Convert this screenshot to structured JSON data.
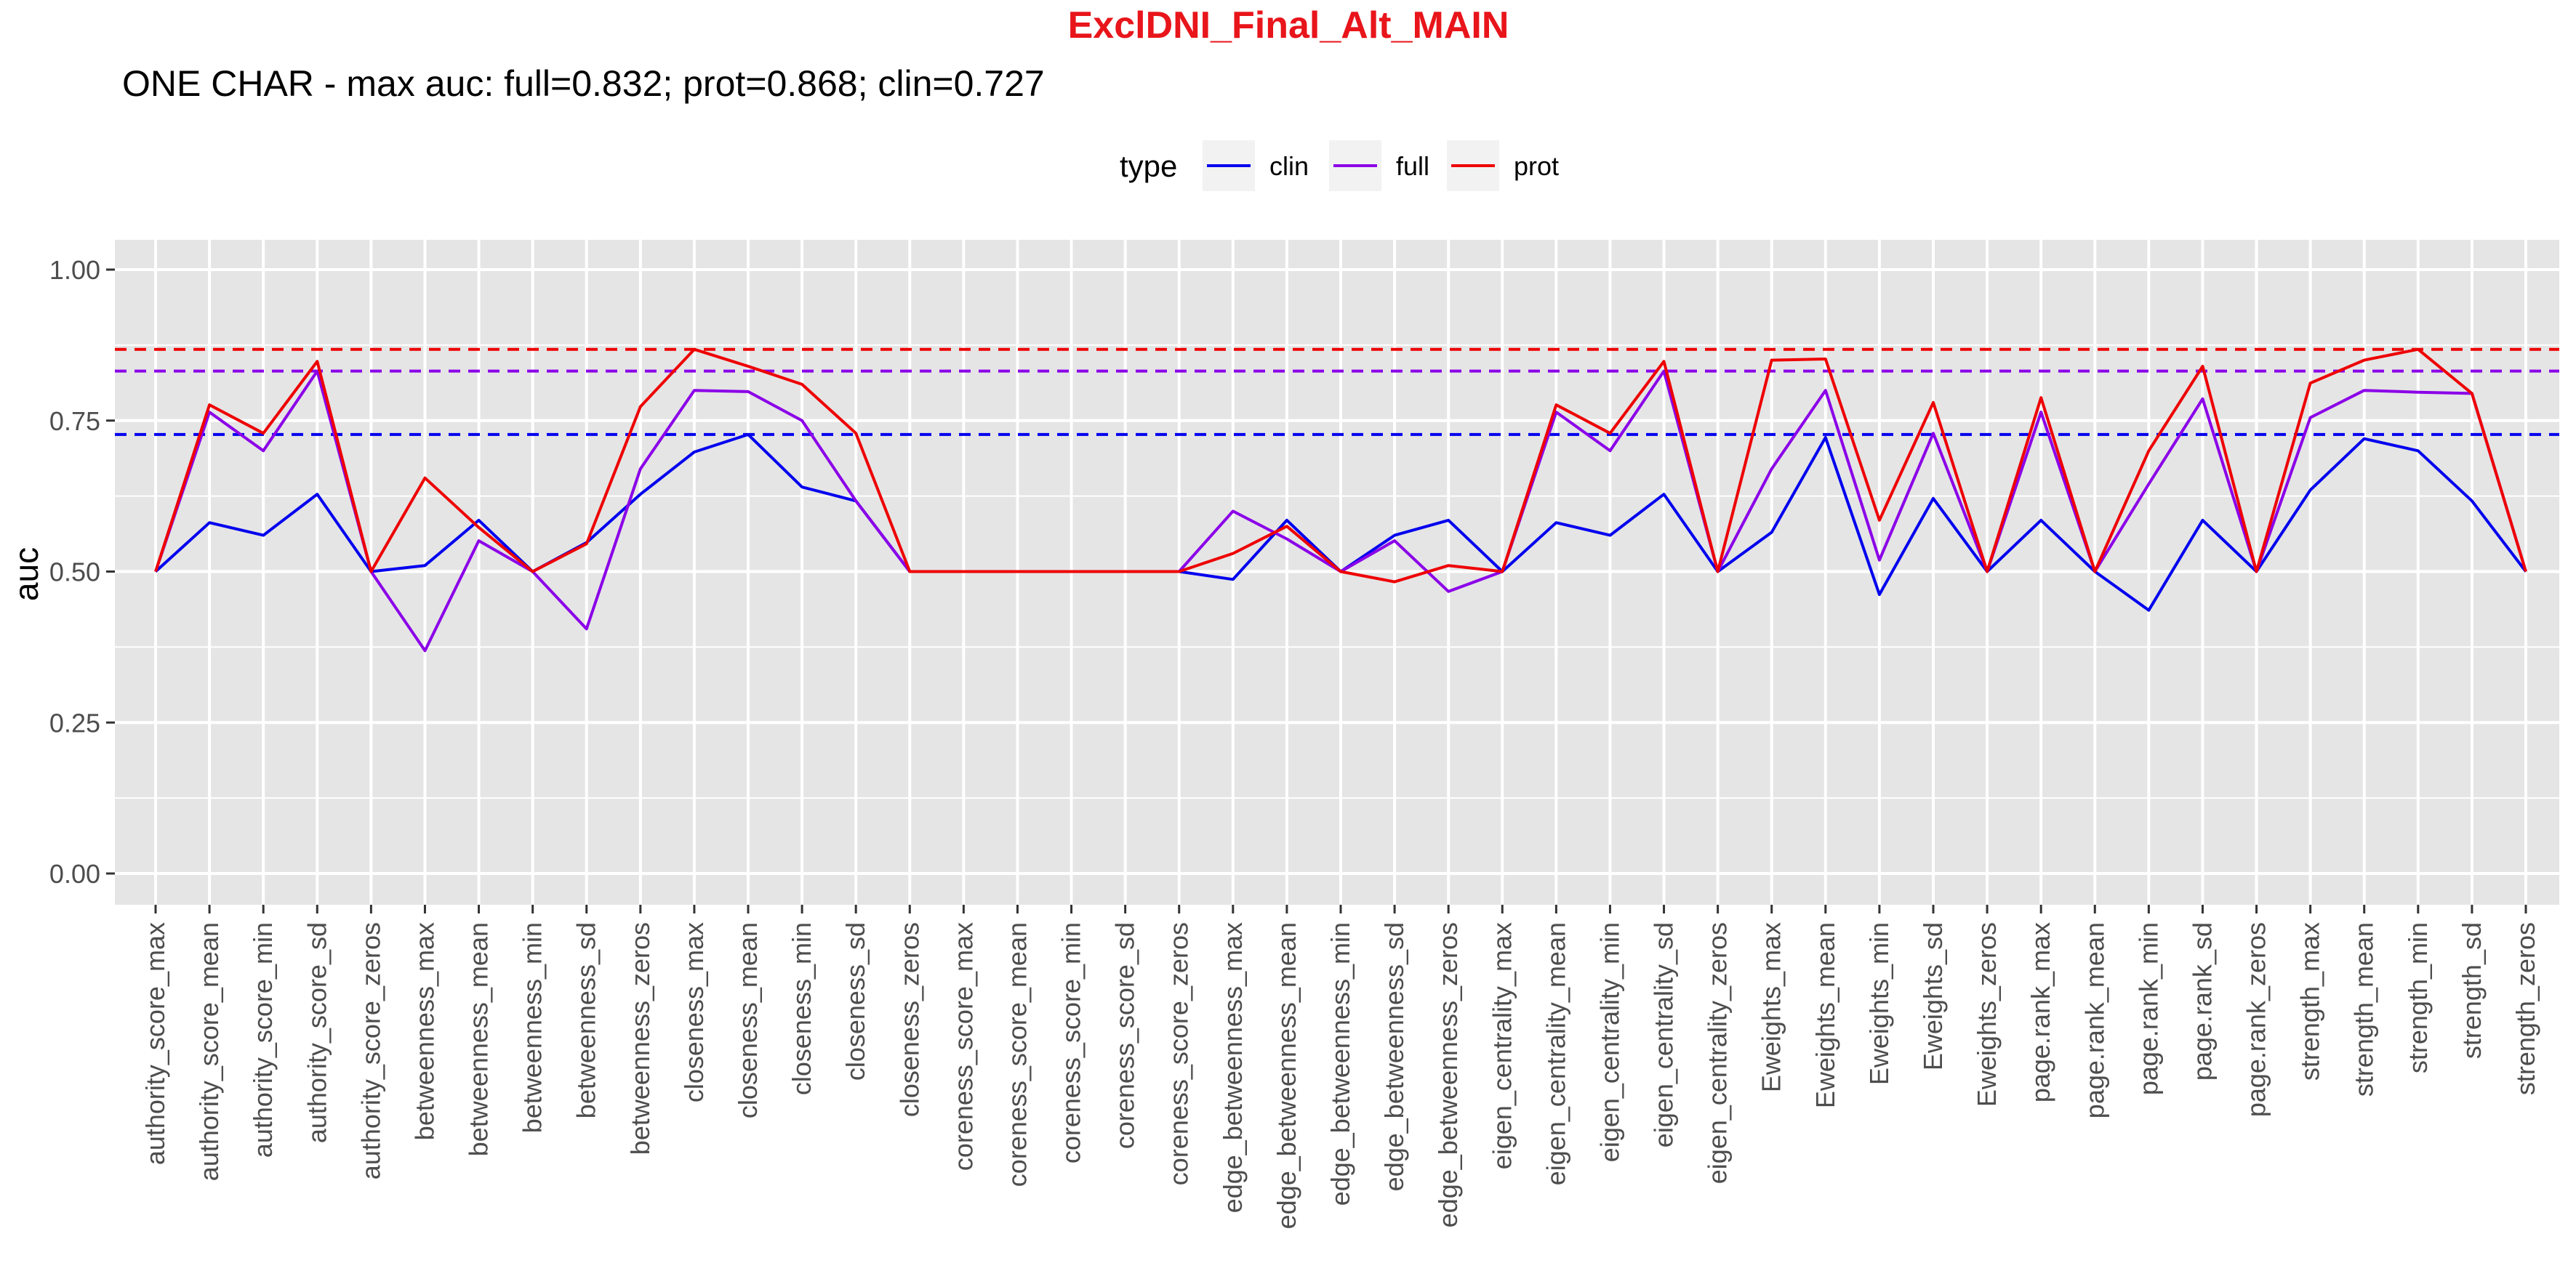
{
  "chart_data": {
    "type": "line",
    "title": "ExclDNI_Final_Alt_MAIN",
    "subtitle": "ONE CHAR - max auc: full=0.832; prot=0.868; clin=0.727",
    "xlabel": "",
    "ylabel": "auc",
    "ylim": [
      0.0,
      1.0
    ],
    "yticks": [
      0.0,
      0.25,
      0.5,
      0.75,
      1.0
    ],
    "ytick_labels": [
      "0.00",
      "0.25",
      "0.50",
      "0.75",
      "1.00"
    ],
    "grid": true,
    "legend": {
      "title": "type",
      "placement": "top",
      "entries": [
        "clin",
        "full",
        "prot"
      ]
    },
    "colors": {
      "title": "#e8151b",
      "clin": "#0000ee",
      "full": "#8b00e8",
      "prot": "#ee0000",
      "panel": "#e5e5e5",
      "grid": "#ffffff"
    },
    "categories": [
      "authority_score_max",
      "authority_score_mean",
      "authority_score_min",
      "authority_score_sd",
      "authority_score_zeros",
      "betweenness_max",
      "betweenness_mean",
      "betweenness_min",
      "betweenness_sd",
      "betweenness_zeros",
      "closeness_max",
      "closeness_mean",
      "closeness_min",
      "closeness_sd",
      "closeness_zeros",
      "coreness_score_max",
      "coreness_score_mean",
      "coreness_score_min",
      "coreness_score_sd",
      "coreness_score_zeros",
      "edge_betweenness_max",
      "edge_betweenness_mean",
      "edge_betweenness_min",
      "edge_betweenness_sd",
      "edge_betweenness_zeros",
      "eigen_centrality_max",
      "eigen_centrality_mean",
      "eigen_centrality_min",
      "eigen_centrality_sd",
      "eigen_centrality_zeros",
      "Eweights_max",
      "Eweights_mean",
      "Eweights_min",
      "Eweights_sd",
      "Eweights_zeros",
      "page.rank_max",
      "page.rank_mean",
      "page.rank_min",
      "page.rank_sd",
      "page.rank_zeros",
      "strength_max",
      "strength_mean",
      "strength_min",
      "strength_sd",
      "strength_zeros"
    ],
    "series": [
      {
        "name": "clin",
        "max_line": 0.727,
        "values": [
          0.5,
          0.581,
          0.56,
          0.628,
          0.5,
          0.51,
          0.585,
          0.5,
          0.548,
          0.628,
          0.698,
          0.727,
          0.64,
          0.617,
          0.5,
          0.5,
          0.5,
          0.5,
          0.5,
          0.5,
          0.487,
          0.585,
          0.5,
          0.56,
          0.585,
          0.5,
          0.581,
          0.56,
          0.628,
          0.5,
          0.565,
          0.722,
          0.462,
          0.621,
          0.5,
          0.585,
          0.5,
          0.436,
          0.585,
          0.5,
          0.635,
          0.72,
          0.7,
          0.617,
          0.5
        ]
      },
      {
        "name": "full",
        "max_line": 0.832,
        "values": [
          0.5,
          0.764,
          0.7,
          0.832,
          0.5,
          0.369,
          0.551,
          0.5,
          0.405,
          0.67,
          0.8,
          0.798,
          0.75,
          0.617,
          0.5,
          0.5,
          0.5,
          0.5,
          0.5,
          0.5,
          0.6,
          0.554,
          0.5,
          0.551,
          0.467,
          0.5,
          0.764,
          0.7,
          0.832,
          0.5,
          0.67,
          0.8,
          0.519,
          0.729,
          0.5,
          0.764,
          0.5,
          0.645,
          0.786,
          0.5,
          0.755,
          0.8,
          0.797,
          0.795,
          0.5
        ]
      },
      {
        "name": "prot",
        "max_line": 0.868,
        "values": [
          0.5,
          0.776,
          0.729,
          0.848,
          0.5,
          0.655,
          0.573,
          0.5,
          0.546,
          0.773,
          0.868,
          0.84,
          0.81,
          0.729,
          0.5,
          0.5,
          0.5,
          0.5,
          0.5,
          0.5,
          0.53,
          0.575,
          0.5,
          0.483,
          0.51,
          0.5,
          0.776,
          0.729,
          0.848,
          0.5,
          0.85,
          0.852,
          0.585,
          0.78,
          0.5,
          0.788,
          0.5,
          0.7,
          0.84,
          0.5,
          0.812,
          0.85,
          0.868,
          0.795,
          0.5
        ]
      }
    ]
  }
}
